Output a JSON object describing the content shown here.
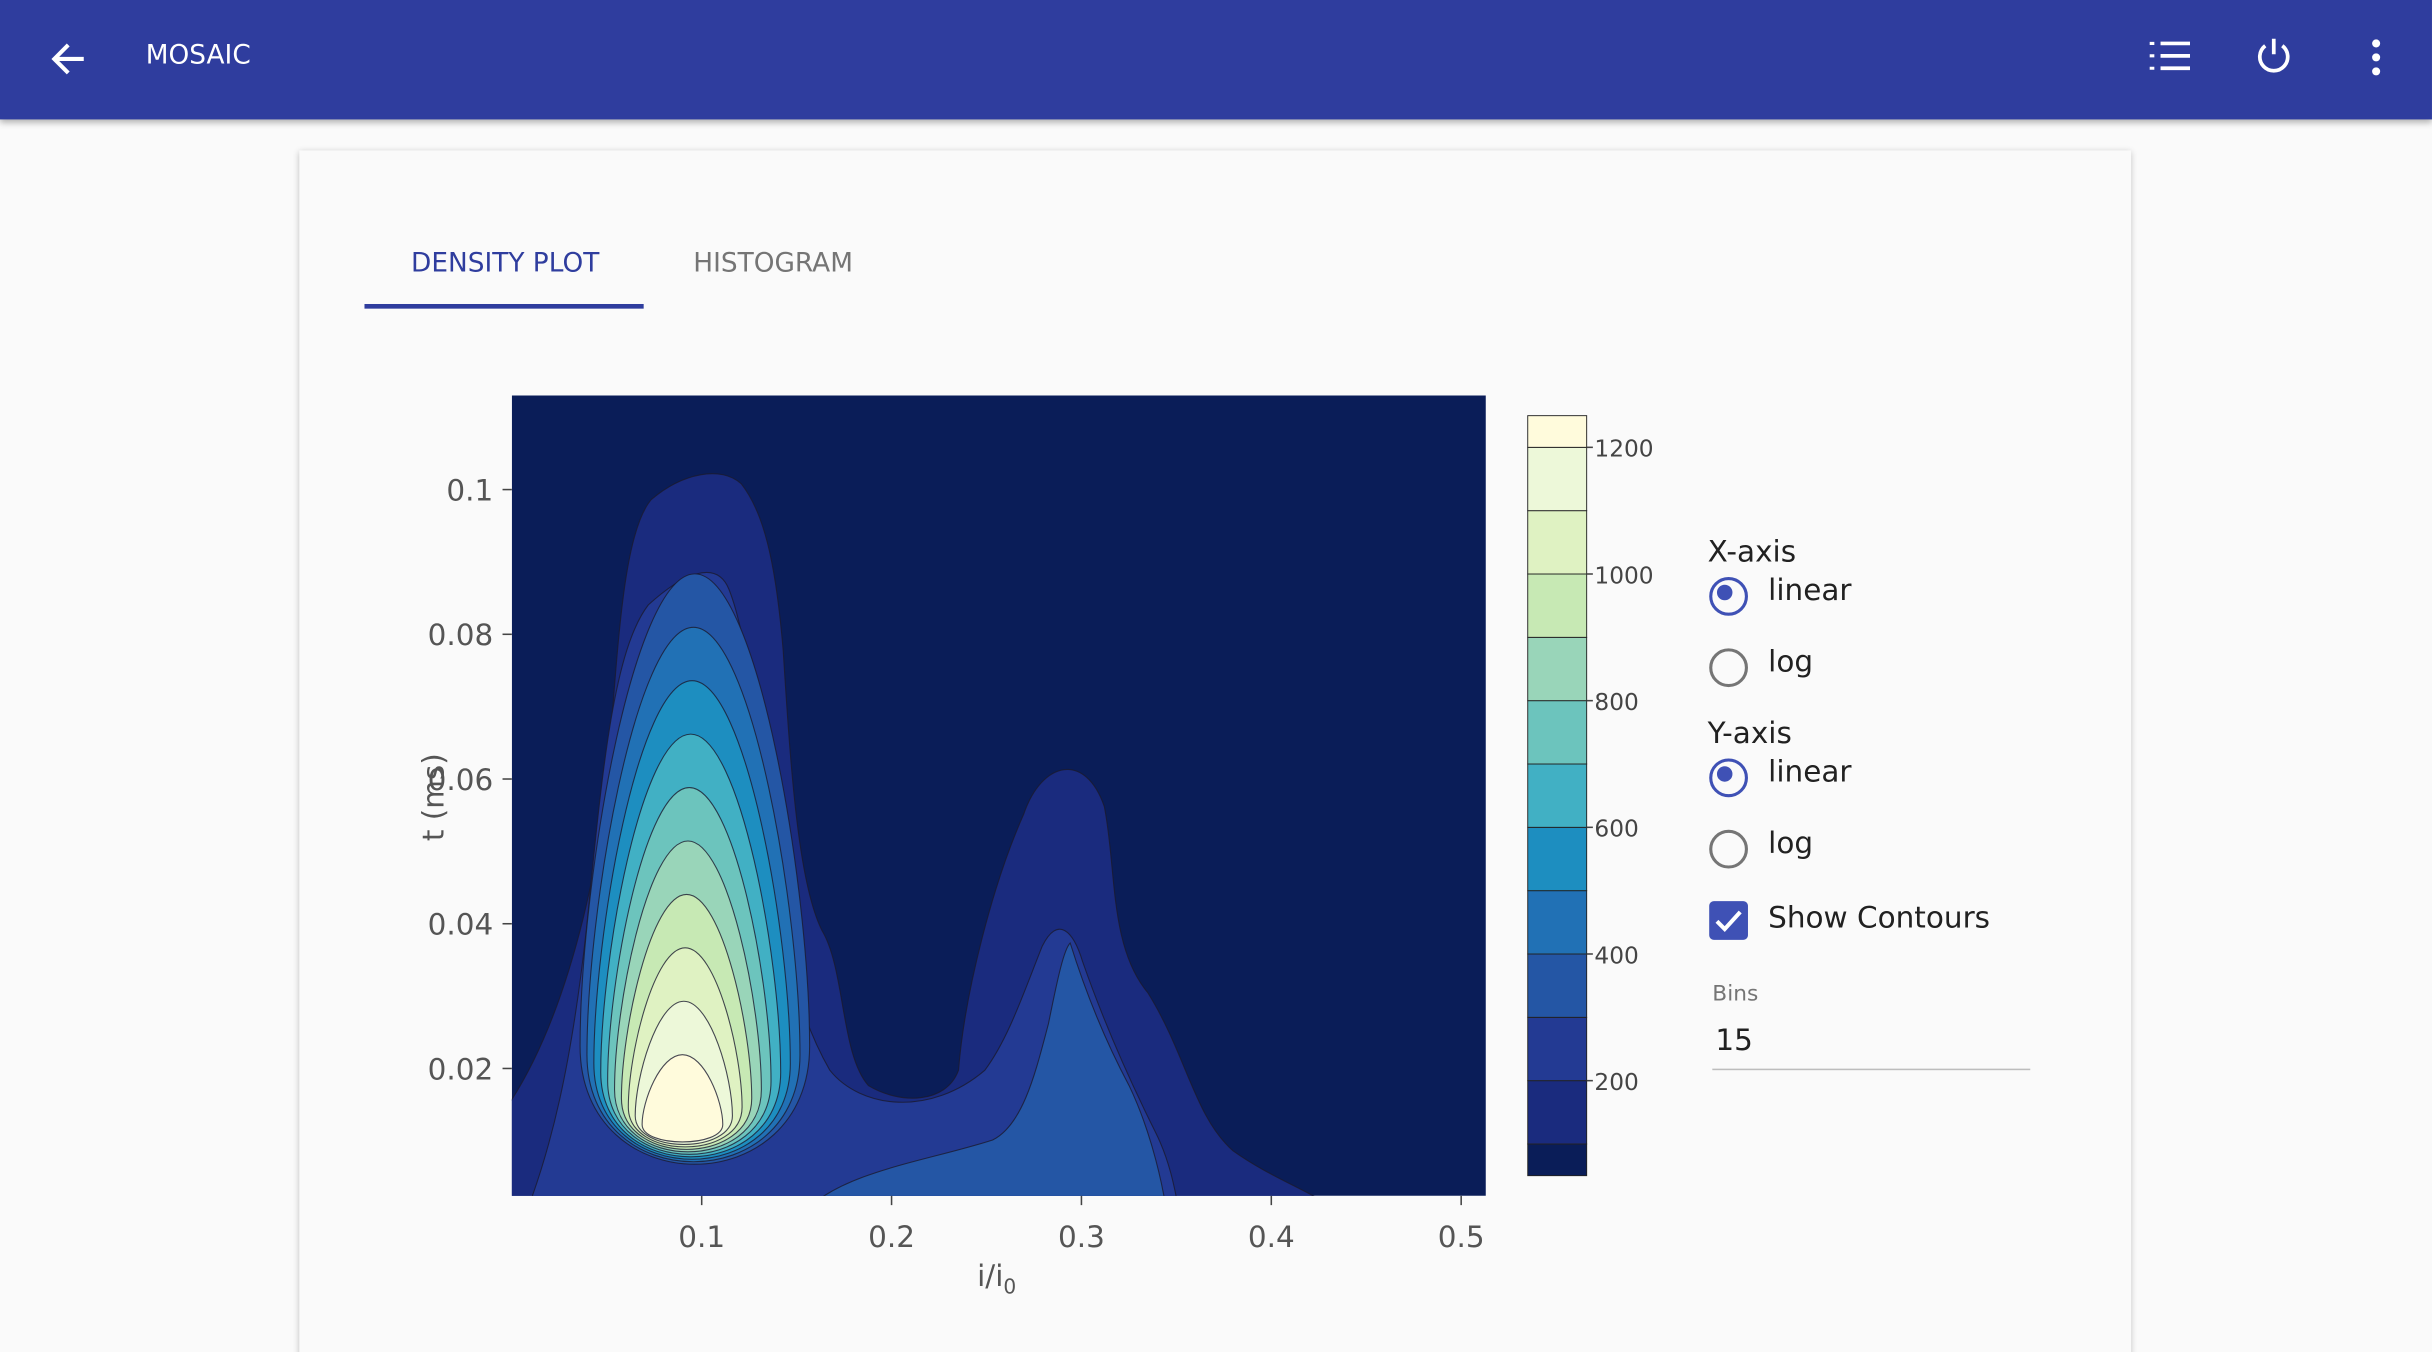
{
  "app_bar": {
    "title": "MOSAIC"
  },
  "tabs": {
    "items": [
      "DENSITY PLOT",
      "HISTOGRAM"
    ],
    "selected": 0
  },
  "chart_data": {
    "type": "contour",
    "x_label": "i/i",
    "x_label_sub": "0",
    "y_label": "t (ms)",
    "xlim": [
      0,
      0.513
    ],
    "ylim": [
      0.0024,
      0.113
    ],
    "xticks": [
      0.1,
      0.2,
      0.3,
      0.4,
      0.5
    ],
    "yticks": [
      0.02,
      0.04,
      0.06,
      0.08,
      0.1
    ],
    "colorbar": {
      "lim": [
        50,
        1250
      ],
      "levels": [
        100,
        200,
        300,
        400,
        500,
        600,
        700,
        800,
        900,
        1000,
        1100,
        1200
      ],
      "ticks": [
        200,
        400,
        600,
        800,
        1000,
        1200
      ],
      "colors": [
        "#0a1d58",
        "#1a2b7e",
        "#233a93",
        "#2456a5",
        "#2171b5",
        "#1d8ec0",
        "#41b0c4",
        "#6cc4bd",
        "#99d5b9",
        "#c7e9b4",
        "#dff2c2",
        "#edf8d9",
        "#fffbdc"
      ]
    }
  },
  "controls": {
    "x_axis": {
      "label": "X-axis",
      "options": [
        "linear",
        "log"
      ],
      "selected": 0
    },
    "y_axis": {
      "label": "Y-axis",
      "options": [
        "linear",
        "log"
      ],
      "selected": 0
    },
    "show_contours": {
      "label": "Show Contours",
      "checked": true
    },
    "bins": {
      "label": "Bins",
      "value": "15"
    }
  }
}
